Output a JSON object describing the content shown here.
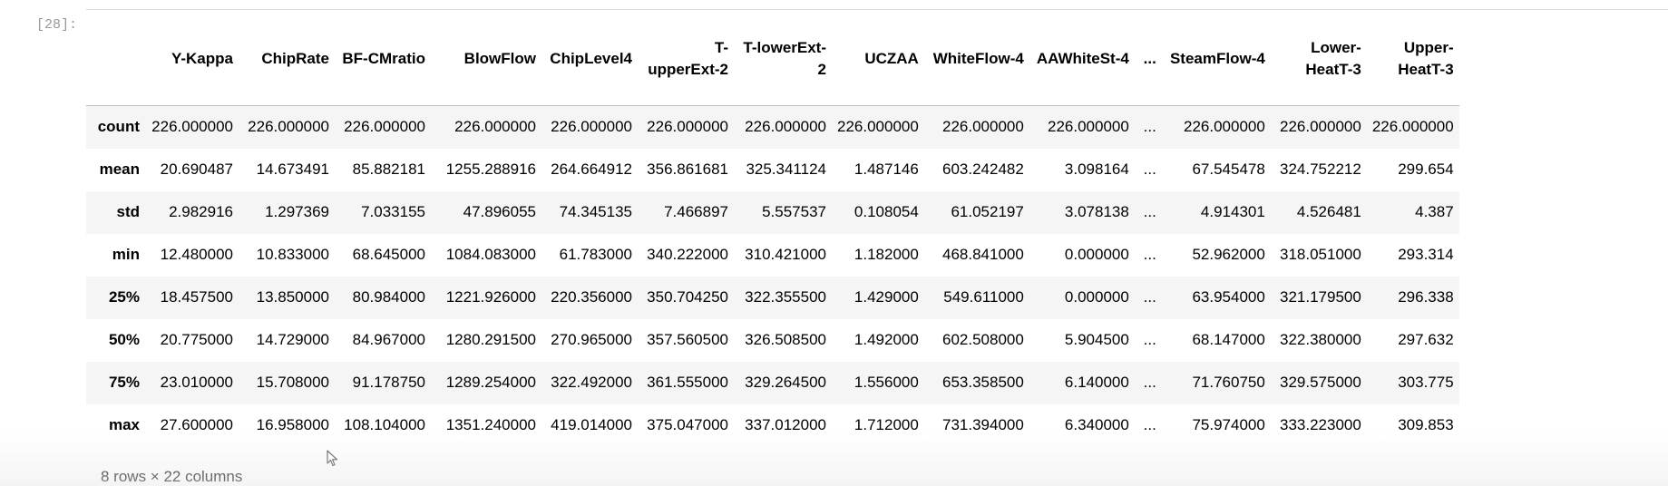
{
  "cell": {
    "prompt": "[28]:"
  },
  "table": {
    "columns": [
      "Y-Kappa",
      "ChipRate",
      "BF-CMratio",
      "BlowFlow",
      "ChipLevel4",
      "T-upperExt-2",
      "T-lowerExt-2",
      "UCZAA",
      "WhiteFlow-4",
      "AAWhiteSt-4",
      "...",
      "SteamFlow-4",
      "Lower-HeatT-3",
      "Upper-HeatT-3"
    ],
    "rows": [
      {
        "label": "count",
        "cells": [
          "226.000000",
          "226.000000",
          "226.000000",
          "226.000000",
          "226.000000",
          "226.000000",
          "226.000000",
          "226.000000",
          "226.000000",
          "226.000000",
          "...",
          "226.000000",
          "226.000000",
          "226.000000"
        ]
      },
      {
        "label": "mean",
        "cells": [
          "20.690487",
          "14.673491",
          "85.882181",
          "1255.288916",
          "264.664912",
          "356.861681",
          "325.341124",
          "1.487146",
          "603.242482",
          "3.098164",
          "...",
          "67.545478",
          "324.752212",
          "299.654"
        ]
      },
      {
        "label": "std",
        "cells": [
          "2.982916",
          "1.297369",
          "7.033155",
          "47.896055",
          "74.345135",
          "7.466897",
          "5.557537",
          "0.108054",
          "61.052197",
          "3.078138",
          "...",
          "4.914301",
          "4.526481",
          "4.387"
        ]
      },
      {
        "label": "min",
        "cells": [
          "12.480000",
          "10.833000",
          "68.645000",
          "1084.083000",
          "61.783000",
          "340.222000",
          "310.421000",
          "1.182000",
          "468.841000",
          "0.000000",
          "...",
          "52.962000",
          "318.051000",
          "293.314"
        ]
      },
      {
        "label": "25%",
        "cells": [
          "18.457500",
          "13.850000",
          "80.984000",
          "1221.926000",
          "220.356000",
          "350.704250",
          "322.355500",
          "1.429000",
          "549.611000",
          "0.000000",
          "...",
          "63.954000",
          "321.179500",
          "296.338"
        ]
      },
      {
        "label": "50%",
        "cells": [
          "20.775000",
          "14.729000",
          "84.967000",
          "1280.291500",
          "270.965000",
          "357.560500",
          "326.508500",
          "1.492000",
          "602.508000",
          "5.904500",
          "...",
          "68.147000",
          "322.380000",
          "297.632"
        ]
      },
      {
        "label": "75%",
        "cells": [
          "23.010000",
          "15.708000",
          "91.178750",
          "1289.254000",
          "322.492000",
          "361.555000",
          "329.264500",
          "1.556000",
          "653.358500",
          "6.140000",
          "...",
          "71.760750",
          "329.575000",
          "303.775"
        ]
      },
      {
        "label": "max",
        "cells": [
          "27.600000",
          "16.958000",
          "108.104000",
          "1351.240000",
          "419.014000",
          "375.047000",
          "337.012000",
          "1.712000",
          "731.394000",
          "6.340000",
          "...",
          "75.974000",
          "333.223000",
          "309.853"
        ]
      }
    ]
  },
  "shape_note": "8 rows × 22 columns"
}
